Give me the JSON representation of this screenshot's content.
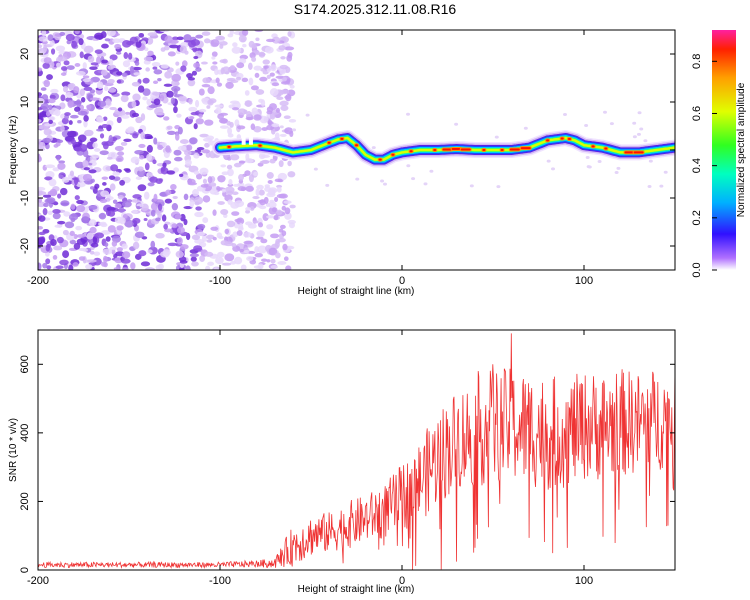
{
  "title": "S174.2025.312.11.08.R16",
  "chart_data": [
    {
      "type": "heatmap",
      "xlabel": "Height of straight line (km)",
      "ylabel": "Frequency (Hz)",
      "xlim": [
        -200,
        150
      ],
      "ylim": [
        -25,
        25
      ],
      "xticks": [
        -200,
        -100,
        0,
        100
      ],
      "yticks": [
        -20,
        -10,
        0,
        10,
        20
      ],
      "noise_region_x": [
        -200,
        -70
      ],
      "ridge": {
        "x": [
          -100,
          -90,
          -80,
          -70,
          -60,
          -50,
          -40,
          -35,
          -30,
          -25,
          -20,
          -15,
          -10,
          -5,
          0,
          10,
          20,
          30,
          40,
          50,
          60,
          70,
          80,
          90,
          95,
          100,
          110,
          120,
          130,
          140,
          150
        ],
        "freq": [
          0.5,
          0.8,
          1.0,
          0.5,
          -0.5,
          0.0,
          1.5,
          2.2,
          2.5,
          1.0,
          -1.0,
          -2.0,
          -2.0,
          -1.0,
          -0.5,
          0.0,
          0.0,
          0.2,
          0.0,
          0.0,
          0.0,
          0.5,
          2.0,
          2.5,
          2.0,
          1.0,
          0.5,
          -0.5,
          -0.5,
          0.0,
          0.5
        ]
      },
      "colorbar": {
        "label": "Normalized spectral amplitude",
        "ticks": [
          0.0,
          0.2,
          0.4,
          0.6,
          0.8
        ],
        "range": [
          0.0,
          0.92
        ]
      }
    },
    {
      "type": "line",
      "xlabel": "Height of straight line (km)",
      "ylabel": "SNR (10 * v/v)",
      "xlim": [
        -200,
        150
      ],
      "ylim": [
        0,
        700
      ],
      "xticks": [
        -200,
        -100,
        0,
        100
      ],
      "yticks": [
        0,
        200,
        400,
        600
      ],
      "color": "#ef3333",
      "series": [
        {
          "name": "SNR",
          "x": [
            -200,
            -150,
            -100,
            -80,
            -70,
            -60,
            -50,
            -40,
            -30,
            -20,
            -10,
            0,
            10,
            20,
            30,
            40,
            50,
            60,
            70,
            80,
            90,
            100,
            110,
            120,
            130,
            140,
            150
          ],
          "y": [
            15,
            15,
            15,
            18,
            20,
            70,
            100,
            110,
            130,
            150,
            170,
            210,
            260,
            330,
            380,
            400,
            420,
            420,
            410,
            400,
            400,
            420,
            420,
            430,
            430,
            440,
            440
          ],
          "noise_amplitude": [
            8,
            8,
            8,
            10,
            15,
            60,
            60,
            60,
            70,
            70,
            80,
            100,
            120,
            140,
            150,
            160,
            170,
            170,
            170,
            170,
            160,
            160,
            160,
            160,
            150,
            150,
            150
          ]
        }
      ],
      "peaks": [
        {
          "x": 50,
          "y": 600
        },
        {
          "x": 60,
          "y": 690
        },
        {
          "x": 42,
          "y": 580
        }
      ]
    }
  ]
}
